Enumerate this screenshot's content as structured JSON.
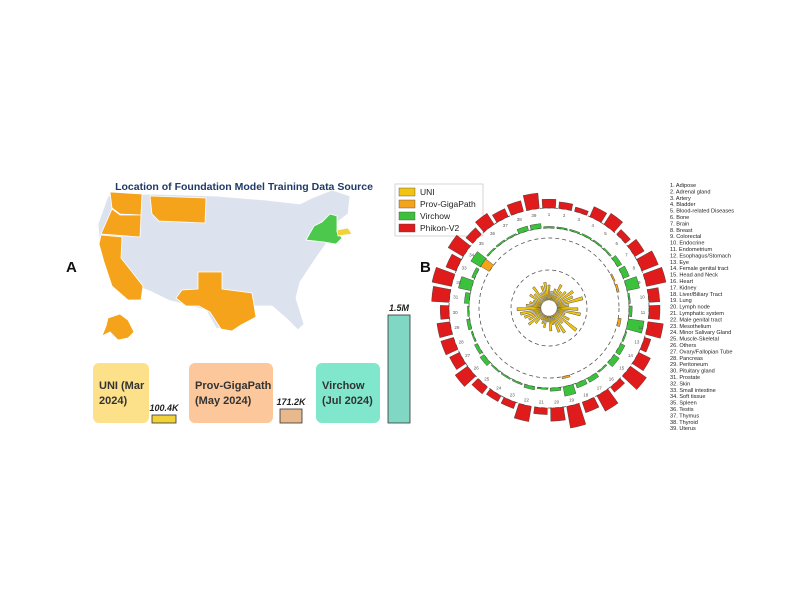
{
  "panel_a": {
    "letter": "A",
    "title": "Location of Foundation Model Training Data Source",
    "map_colors": {
      "base": "#dde3ee",
      "prov_gigapath": "#f5a31a",
      "virchow": "#4cc94c",
      "uni": "#f2d23a"
    },
    "states": {
      "prov_gigapath": [
        "Washington",
        "Oregon",
        "California",
        "Montana",
        "Texas",
        "Alaska"
      ],
      "virchow": [
        "New York"
      ],
      "uni": [
        "Massachusetts"
      ]
    },
    "cards": [
      {
        "line1": "UNI (Mar",
        "line2": "2024)",
        "count_label": "100.4K",
        "color": "#fde08a",
        "bar_color": "#f2d23a",
        "count": 100400
      },
      {
        "line1": "Prov-GigaPath",
        "line2": "(May 2024)",
        "count_label": "171.2K",
        "color": "#fcc79a",
        "bar_color": "#e7b98c",
        "count": 171200
      },
      {
        "line1": "Virchow",
        "line2": "(Jul 2024)",
        "count_label": "1.5M",
        "color": "#80e6cc",
        "bar_color": "#7fd7c4",
        "count": 1500000
      }
    ]
  },
  "panel_b": {
    "letter": "B",
    "legend": [
      {
        "name": "UNI",
        "color": "#f2c40f"
      },
      {
        "name": "Prov-GigaPath",
        "color": "#f5a31a"
      },
      {
        "name": "Virchow",
        "color": "#3cc13c"
      },
      {
        "name": "Phikon-V2",
        "color": "#e01b1b"
      }
    ],
    "organs": [
      "1. Adipose",
      "2. Adrenal gland",
      "3. Artery",
      "4. Bladder",
      "5. Blood-related Diseases",
      "6. Bone",
      "7. Brain",
      "8. Breast",
      "9. Colorectal",
      "10. Endocrine",
      "11. Endometrium",
      "12. Esophagus/Stomach",
      "13. Eye",
      "14. Female genital tract",
      "15. Head and Neck",
      "16. Heart",
      "17. Kidney",
      "18. Liver/Biliary Tract",
      "19. Lung",
      "20. Lymph node",
      "21. Lymphatic system",
      "22. Male genital tract",
      "23. Mesothelium",
      "24. Minor Salivary Gland",
      "25. Muscle-Skeletal",
      "26. Others",
      "27. Ovary/Fallopian Tube",
      "28. Pancreas",
      "29. Peritoneum",
      "30. Pituitary gland",
      "31. Prostate",
      "32. Skin",
      "33. Small intestine",
      "34. Soft tissue",
      "35. Spleen",
      "36. Testis",
      "37. Thymus",
      "38. Thyroid",
      "39. Uterus"
    ]
  },
  "chart_data": [
    {
      "type": "bar",
      "title": "",
      "categories": [
        "UNI (Mar 2024)",
        "Prov-GigaPath (May 2024)",
        "Virchow (Jul 2024)"
      ],
      "values": [
        100400,
        171200,
        1500000
      ],
      "data_labels": [
        "100.4K",
        "171.2K",
        "1.5M"
      ],
      "xlabel": "",
      "ylabel": "",
      "ylim": [
        0,
        1500000
      ],
      "grid": false
    },
    {
      "type": "bar",
      "subtype": "circular",
      "title": "",
      "categories": [
        "1",
        "2",
        "3",
        "4",
        "5",
        "6",
        "7",
        "8",
        "9",
        "10",
        "11",
        "12",
        "13",
        "14",
        "15",
        "16",
        "17",
        "18",
        "19",
        "20",
        "21",
        "22",
        "23",
        "24",
        "25",
        "26",
        "27",
        "28",
        "29",
        "30",
        "31",
        "32",
        "33",
        "34",
        "35",
        "36",
        "37",
        "38",
        "39"
      ],
      "series": [
        {
          "name": "UNI",
          "values": [
            0.5,
            0.3,
            0.4,
            0.6,
            0.4,
            0.5,
            0.7,
            0.6,
            0.9,
            0.4,
            0.7,
            0.8,
            0.3,
            0.5,
            0.9,
            0.4,
            0.7,
            0.6,
            0.3,
            0.5,
            0.2,
            0.4,
            0.3,
            0.2,
            0.4,
            0.6,
            0.5,
            0.6,
            0.7,
            0.8,
            0.5,
            0.4,
            0.3,
            0.5,
            0.4,
            0.6,
            0.3,
            0.5,
            0.6
          ]
        },
        {
          "name": "Prov-GigaPath",
          "values": [
            0,
            0,
            0,
            0,
            0,
            0,
            0,
            0.1,
            0.2,
            0,
            0,
            0.3,
            0,
            0,
            0,
            0,
            0,
            0,
            0.2,
            0,
            0,
            0,
            0,
            0,
            0,
            0,
            0,
            0,
            0,
            0,
            0,
            0,
            0,
            1.0,
            0,
            0,
            0,
            0,
            0
          ]
        },
        {
          "name": "Virchow",
          "values": [
            0.1,
            0.05,
            0.05,
            0.1,
            0.05,
            0.1,
            0.3,
            0.4,
            0.8,
            0.1,
            0.2,
            1.0,
            0.05,
            0.3,
            0.4,
            0.05,
            0.3,
            0.3,
            0.6,
            0.2,
            0.05,
            0.2,
            0.05,
            0.05,
            0.05,
            0.3,
            0.2,
            0.05,
            0.2,
            0.05,
            0.3,
            0.8,
            0.2,
            0.7,
            0.05,
            0.1,
            0.05,
            0.3,
            0.3
          ]
        },
        {
          "name": "Phikon-V2",
          "values": [
            0.4,
            0.3,
            0.2,
            0.5,
            0.6,
            0.3,
            0.5,
            0.8,
            0.9,
            0.5,
            0.5,
            0.7,
            0.3,
            0.6,
            0.9,
            0.3,
            0.8,
            0.5,
            1.0,
            0.6,
            0.3,
            0.7,
            0.3,
            0.3,
            0.4,
            0.7,
            0.5,
            0.6,
            0.6,
            0.4,
            0.8,
            0.9,
            0.5,
            0.8,
            0.4,
            0.6,
            0.4,
            0.5,
            0.7
          ]
        }
      ],
      "grid": true,
      "legend_position": "top-left"
    }
  ]
}
